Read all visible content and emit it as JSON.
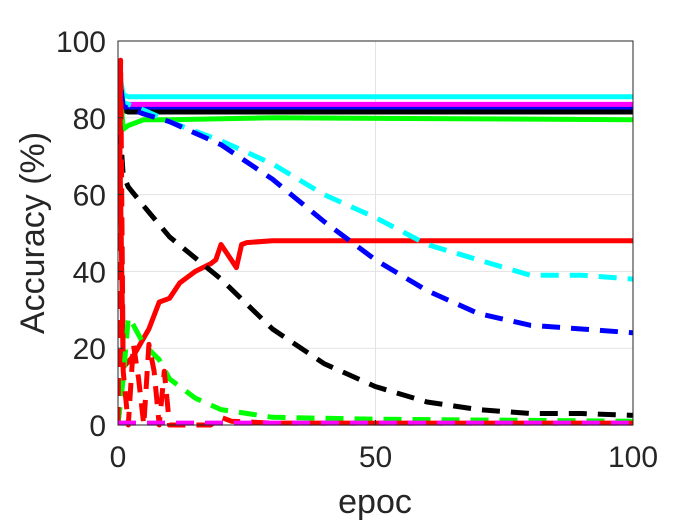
{
  "chart_data": {
    "type": "line",
    "title": "",
    "xlabel": "epoc",
    "ylabel": "Accuracy (%)",
    "xlim": [
      0,
      100
    ],
    "ylim": [
      0,
      100
    ],
    "xticks": [
      0,
      50,
      100
    ],
    "yticks": [
      0,
      20,
      40,
      60,
      80,
      100
    ],
    "grid": true,
    "legend": "none",
    "series": [
      {
        "color": "#00ffff",
        "style": "solid",
        "x": [
          0,
          1,
          2,
          5,
          10,
          100
        ],
        "y": [
          94,
          86,
          85.5,
          85.5,
          85.5,
          85.5
        ]
      },
      {
        "color": "#0000ff",
        "style": "solid",
        "x": [
          0,
          1,
          2,
          5,
          100
        ],
        "y": [
          94,
          83,
          82.5,
          82.5,
          82.5
        ]
      },
      {
        "color": "#000000",
        "style": "solid",
        "x": [
          0,
          1,
          2,
          100
        ],
        "y": [
          93,
          82,
          81.5,
          81.5
        ]
      },
      {
        "color": "#ff00ff",
        "style": "solid",
        "x": [
          0,
          1,
          100
        ],
        "y": [
          83.5,
          83.5,
          83.5
        ]
      },
      {
        "color": "#00ff00",
        "style": "solid",
        "x": [
          0,
          1,
          2,
          5,
          10,
          30,
          100
        ],
        "y": [
          94,
          77,
          78,
          79.5,
          79.5,
          80,
          79.5
        ]
      },
      {
        "color": "#ff0000",
        "style": "solid",
        "x": [
          0,
          0.5,
          1,
          3,
          6,
          8,
          10,
          12,
          15,
          18,
          19,
          20,
          22,
          23,
          24,
          25,
          30,
          50,
          100
        ],
        "y": [
          94,
          60,
          15,
          18,
          25,
          32,
          33,
          37,
          40,
          42,
          43,
          47,
          43,
          41,
          47,
          47.5,
          48,
          48,
          48
        ]
      },
      {
        "color": "#00ffff",
        "style": "dashed",
        "x": [
          0,
          1,
          3,
          5,
          10,
          20,
          30,
          40,
          50,
          60,
          70,
          80,
          90,
          100
        ],
        "y": [
          94,
          84,
          83,
          82,
          79,
          74,
          68,
          60,
          54,
          47,
          43,
          39,
          39,
          38
        ]
      },
      {
        "color": "#0000ff",
        "style": "dashed",
        "x": [
          0,
          1,
          3,
          5,
          10,
          20,
          30,
          40,
          50,
          60,
          70,
          80,
          90,
          100
        ],
        "y": [
          94,
          83,
          82,
          81,
          79,
          73,
          64,
          53,
          43,
          35,
          29,
          26,
          25,
          24
        ]
      },
      {
        "color": "#000000",
        "style": "dashed",
        "x": [
          0,
          0.5,
          1,
          2,
          5,
          10,
          20,
          30,
          40,
          50,
          60,
          70,
          80,
          90,
          100
        ],
        "y": [
          93,
          75,
          65,
          62,
          57,
          49,
          38,
          25,
          16,
          10,
          6,
          4,
          3,
          3,
          2.5
        ]
      },
      {
        "color": "#00ff00",
        "style": "dashed",
        "x": [
          0,
          1,
          2,
          3,
          5,
          8,
          10,
          15,
          20,
          30,
          50,
          100
        ],
        "y": [
          0,
          12,
          28,
          26,
          21,
          17,
          12,
          7,
          4,
          2,
          1.5,
          1
        ]
      },
      {
        "color": "#ff0000",
        "style": "dashed",
        "x": [
          0,
          0.5,
          1,
          2,
          3,
          4,
          5,
          6,
          7,
          8,
          9,
          10,
          12,
          15,
          18,
          20,
          22,
          30,
          50,
          100
        ],
        "y": [
          0,
          95,
          14,
          0,
          21,
          12,
          0,
          21,
          14,
          0,
          14,
          0,
          0,
          0,
          0,
          2,
          1,
          0.5,
          0.5,
          0.5
        ]
      },
      {
        "color": "#ff00ff",
        "style": "dashed",
        "x": [
          0,
          100
        ],
        "y": [
          0.5,
          0.5
        ]
      }
    ]
  }
}
